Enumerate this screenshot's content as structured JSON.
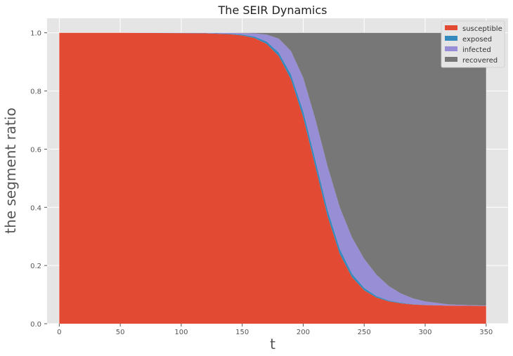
{
  "chart_data": {
    "type": "area",
    "stacked": true,
    "title": "The SEIR Dynamics",
    "xlabel": "t",
    "ylabel": "the segment ratio",
    "xlim": [
      -10,
      368
    ],
    "ylim": [
      0,
      1.05
    ],
    "x_ticks": [
      0,
      50,
      100,
      150,
      200,
      250,
      300,
      350
    ],
    "y_ticks": [
      0.0,
      0.2,
      0.4,
      0.6,
      0.8,
      1.0
    ],
    "x_tick_labels": [
      "0",
      "50",
      "100",
      "150",
      "200",
      "250",
      "300",
      "350"
    ],
    "y_tick_labels": [
      "0.0",
      "0.2",
      "0.4",
      "0.6",
      "0.8",
      "1.0"
    ],
    "grid": true,
    "legend_position": "top-right",
    "x": [
      0,
      50,
      100,
      120,
      140,
      150,
      160,
      170,
      180,
      190,
      200,
      210,
      220,
      230,
      240,
      250,
      260,
      270,
      280,
      290,
      300,
      320,
      350
    ],
    "series": [
      {
        "name": "susceptible",
        "color": "#E24A33",
        "values": [
          1.0,
          1.0,
          0.999,
          0.998,
          0.995,
          0.991,
          0.982,
          0.962,
          0.92,
          0.84,
          0.71,
          0.54,
          0.37,
          0.24,
          0.16,
          0.115,
          0.09,
          0.077,
          0.07,
          0.066,
          0.064,
          0.062,
          0.061
        ]
      },
      {
        "name": "exposed",
        "color": "#348ABD",
        "values": [
          0.0,
          0.0,
          0.0005,
          0.001,
          0.002,
          0.003,
          0.005,
          0.008,
          0.012,
          0.017,
          0.021,
          0.023,
          0.021,
          0.017,
          0.012,
          0.008,
          0.005,
          0.003,
          0.002,
          0.001,
          0.0005,
          0.0,
          0.0
        ]
      },
      {
        "name": "infected",
        "color": "#988ED5",
        "values": [
          0.0,
          0.0,
          0.0005,
          0.001,
          0.003,
          0.005,
          0.011,
          0.024,
          0.048,
          0.08,
          0.115,
          0.14,
          0.15,
          0.143,
          0.125,
          0.1,
          0.074,
          0.05,
          0.032,
          0.02,
          0.012,
          0.004,
          0.001
        ]
      },
      {
        "name": "recovered",
        "color": "#777777",
        "values": [
          0.0,
          0.0,
          0.0,
          0.0,
          0.0,
          0.001,
          0.002,
          0.006,
          0.02,
          0.063,
          0.154,
          0.297,
          0.459,
          0.6,
          0.703,
          0.777,
          0.831,
          0.87,
          0.896,
          0.913,
          0.9235,
          0.934,
          0.938
        ]
      }
    ]
  }
}
